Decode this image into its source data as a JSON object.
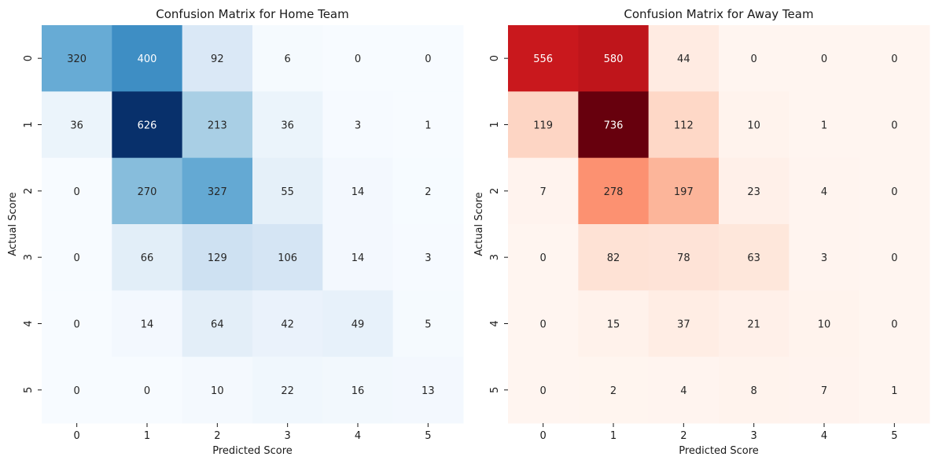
{
  "chart_data": [
    {
      "type": "heatmap",
      "title": "Confusion Matrix for Home Team",
      "xlabel": "Predicted Score",
      "ylabel": "Actual Score",
      "x_ticks": [
        "0",
        "1",
        "2",
        "3",
        "4",
        "5"
      ],
      "y_ticks": [
        "0",
        "1",
        "2",
        "3",
        "4",
        "5"
      ],
      "colormap": "Blues",
      "value_range": [
        0,
        626
      ],
      "matrix": [
        [
          320,
          400,
          92,
          6,
          0,
          0
        ],
        [
          36,
          626,
          213,
          36,
          3,
          1
        ],
        [
          0,
          270,
          327,
          55,
          14,
          2
        ],
        [
          0,
          66,
          129,
          106,
          14,
          3
        ],
        [
          0,
          14,
          64,
          42,
          49,
          5
        ],
        [
          0,
          0,
          10,
          22,
          16,
          13
        ]
      ]
    },
    {
      "type": "heatmap",
      "title": "Confusion Matrix for Away Team",
      "xlabel": "Predicted Score",
      "ylabel": "Actual Score",
      "x_ticks": [
        "0",
        "1",
        "2",
        "3",
        "4",
        "5"
      ],
      "y_ticks": [
        "0",
        "1",
        "2",
        "3",
        "4",
        "5"
      ],
      "colormap": "Reds",
      "value_range": [
        0,
        736
      ],
      "matrix": [
        [
          556,
          580,
          44,
          0,
          0,
          0
        ],
        [
          119,
          736,
          112,
          10,
          1,
          0
        ],
        [
          7,
          278,
          197,
          23,
          4,
          0
        ],
        [
          0,
          82,
          78,
          63,
          3,
          0
        ],
        [
          0,
          15,
          37,
          21,
          10,
          0
        ],
        [
          0,
          2,
          4,
          8,
          7,
          1
        ]
      ]
    }
  ]
}
